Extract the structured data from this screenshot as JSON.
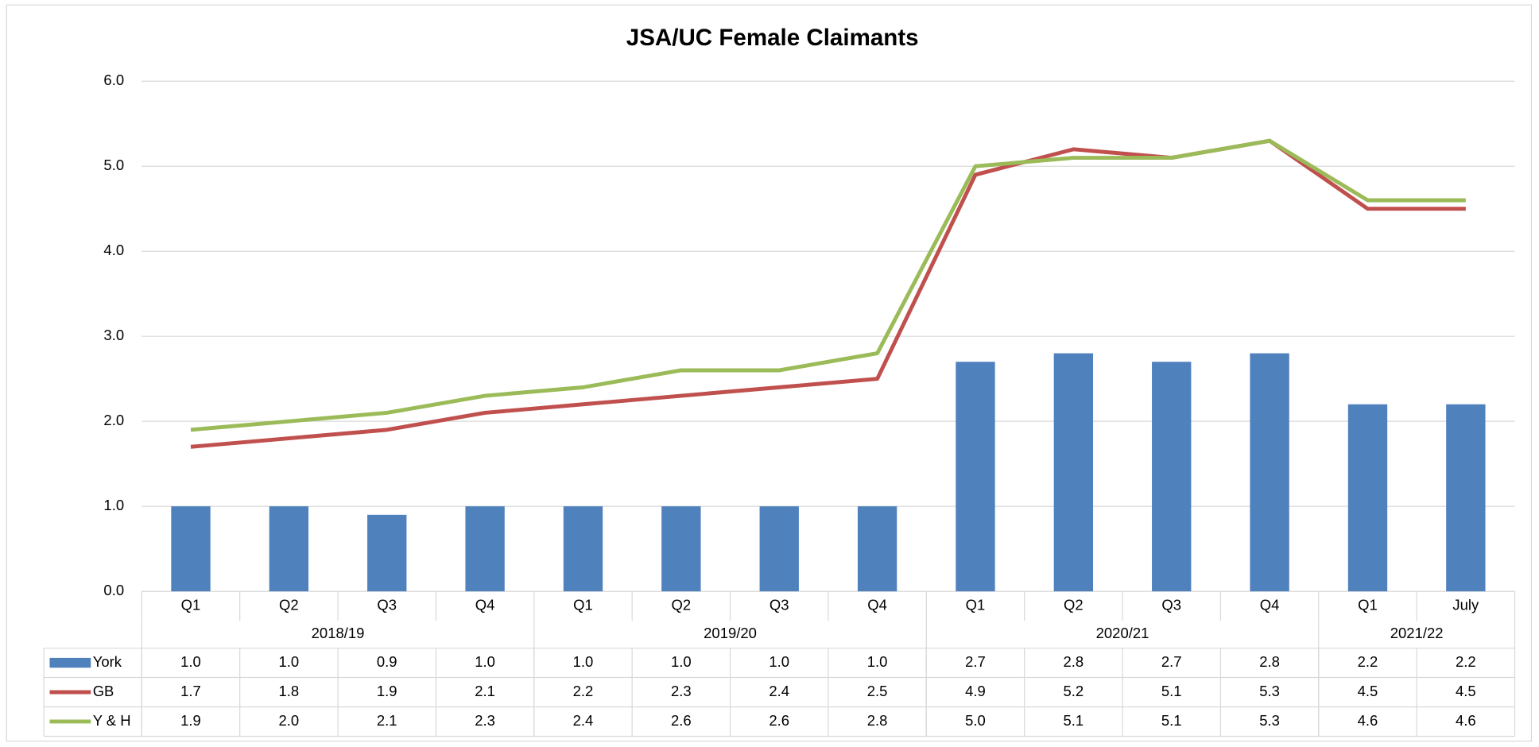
{
  "chart_data": {
    "type": "combo",
    "title": "JSA/UC Female Claimants",
    "categories": [
      "Q1",
      "Q2",
      "Q3",
      "Q4",
      "Q1",
      "Q2",
      "Q3",
      "Q4",
      "Q1",
      "Q2",
      "Q3",
      "Q4",
      "Q1",
      "July"
    ],
    "periods": [
      "2018/19",
      "2018/19",
      "2018/19",
      "2018/19",
      "2019/20",
      "2019/20",
      "2019/20",
      "2019/20",
      "2020/21",
      "2020/21",
      "2020/21",
      "2020/21",
      "2021/22",
      "2021/22"
    ],
    "ylim": [
      0,
      6
    ],
    "yticks": [
      {
        "value": 0,
        "label": "0.0"
      },
      {
        "value": 1,
        "label": "1.0"
      },
      {
        "value": 2,
        "label": "2.0"
      },
      {
        "value": 3,
        "label": "3.0"
      },
      {
        "value": 4,
        "label": "4.0"
      },
      {
        "value": 5,
        "label": "5.0"
      },
      {
        "value": 6,
        "label": "6.0"
      }
    ],
    "grid": true,
    "series": [
      {
        "name": "York",
        "type": "bar",
        "color": "#4f81bd",
        "values": [
          1.0,
          1.0,
          0.9,
          1.0,
          1.0,
          1.0,
          1.0,
          1.0,
          2.7,
          2.8,
          2.7,
          2.8,
          2.2,
          2.2
        ],
        "value_labels": [
          "1.0",
          "1.0",
          "0.9",
          "1.0",
          "1.0",
          "1.0",
          "1.0",
          "1.0",
          "2.7",
          "2.8",
          "2.7",
          "2.8",
          "2.2",
          "2.2"
        ]
      },
      {
        "name": "GB",
        "type": "line",
        "color": "#c0504d",
        "values": [
          1.7,
          1.8,
          1.9,
          2.1,
          2.2,
          2.3,
          2.4,
          2.5,
          4.9,
          5.2,
          5.1,
          5.3,
          4.5,
          4.5
        ],
        "value_labels": [
          "1.7",
          "1.8",
          "1.9",
          "2.1",
          "2.2",
          "2.3",
          "2.4",
          "2.5",
          "4.9",
          "5.2",
          "5.1",
          "5.3",
          "4.5",
          "4.5"
        ]
      },
      {
        "name": "Y & H",
        "type": "line",
        "color": "#9bbb59",
        "values": [
          1.9,
          2.0,
          2.1,
          2.3,
          2.4,
          2.6,
          2.6,
          2.8,
          5.0,
          5.1,
          5.1,
          5.3,
          4.6,
          4.6
        ],
        "value_labels": [
          "1.9",
          "2.0",
          "2.1",
          "2.3",
          "2.4",
          "2.6",
          "2.6",
          "2.8",
          "5.0",
          "5.1",
          "5.1",
          "5.3",
          "4.6",
          "4.6"
        ]
      }
    ]
  }
}
